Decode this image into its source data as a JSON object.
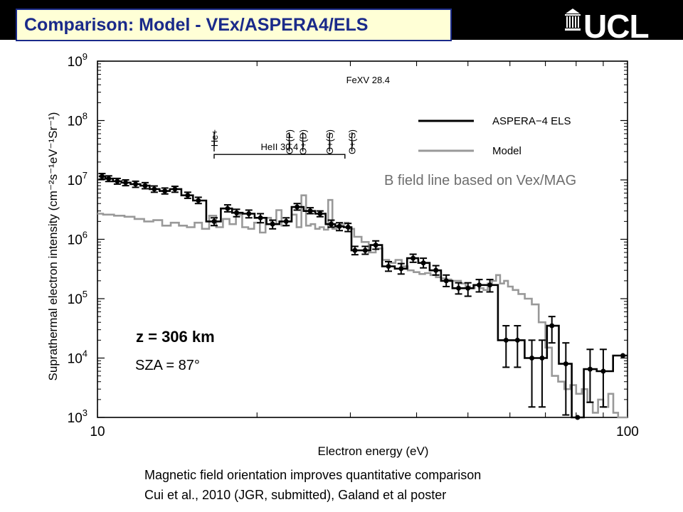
{
  "header": {
    "title": "Comparison: Model - VEx/ASPERA4/ELS",
    "logo_text": "UCL"
  },
  "annotations": {
    "b_field": "B field line based on Vex/MAG",
    "sza": "SZA = 87°"
  },
  "caption": {
    "line1": "Magnetic field orientation improves quantitative comparison",
    "line2": "Cui et al., 2010 (JGR, submitted), Galand et al poster"
  },
  "colors": {
    "title_text": "#1a2a8a",
    "title_bg": "#ffffd6",
    "topbar": "#000000",
    "observed": "#000000",
    "model": "#999999"
  },
  "chart_data": {
    "type": "line",
    "xlabel": "Electron energy (eV)",
    "ylabel": "Suprathermal electron intensity (cm⁻²s⁻¹eV⁻¹Sr⁻¹)",
    "xscale": "log",
    "yscale": "log",
    "xlim": [
      10,
      100
    ],
    "ylim": [
      1000,
      1000000000
    ],
    "x_ticks": [
      {
        "value": 10,
        "label": "10"
      },
      {
        "value": 100,
        "label": "100"
      }
    ],
    "y_ticks": [
      {
        "value": 1000,
        "base": "10",
        "exp": "3"
      },
      {
        "value": 10000,
        "base": "10",
        "exp": "4"
      },
      {
        "value": 100000,
        "base": "10",
        "exp": "5"
      },
      {
        "value": 1000000,
        "base": "10",
        "exp": "6"
      },
      {
        "value": 10000000,
        "base": "10",
        "exp": "7"
      },
      {
        "value": 100000000,
        "base": "10",
        "exp": "8"
      },
      {
        "value": 1000000000,
        "base": "10",
        "exp": "9"
      }
    ],
    "legend": {
      "placement": "top-right",
      "entries": [
        {
          "name": "ASPERA−4 ELS",
          "series": "observed"
        },
        {
          "name": "Model",
          "series": "model"
        }
      ]
    },
    "plot_label": "z = 306 km",
    "line_marks": {
      "group_label": "HeII 30.4",
      "group_from": 16.6,
      "group_to": 29.3,
      "group_y": 30000000,
      "lines": [
        {
          "label": "He+",
          "x": 16.6
        },
        {
          "label": "O+(P)",
          "x": 23.0
        },
        {
          "label": "O+(D)",
          "x": 24.4
        },
        {
          "label": "O+(S)",
          "x": 27.4
        },
        {
          "label": "O+(S)",
          "x": 30.2,
          "sublabel": "FeXV 28.4"
        }
      ]
    },
    "series": [
      {
        "name": "ASPERA−4 ELS",
        "id": "observed",
        "x": [
          10.2,
          10.5,
          10.9,
          11.3,
          11.8,
          12.3,
          12.8,
          13.4,
          14.0,
          14.8,
          15.5,
          16.6,
          17.6,
          18.3,
          19.3,
          20.3,
          21.4,
          22.7,
          23.8,
          25.2,
          26.3,
          27.6,
          28.6,
          29.7,
          30.6,
          32.0,
          33.5,
          35.4,
          37.4,
          39.4,
          41.2,
          43.5,
          45.5,
          48.0,
          50.0,
          52.5,
          55.0,
          59.0,
          62.0,
          66.0,
          69.0,
          72.0,
          76.5,
          80.5,
          85.0,
          90.0,
          98.0
        ],
        "y": [
          11500000,
          10500000,
          9500000,
          9000000,
          8500000,
          8000000,
          7000000,
          6500000,
          7000000,
          5500000,
          4500000,
          2000000,
          3300000,
          2800000,
          2700000,
          2300000,
          1800000,
          2000000,
          3500000,
          3000000,
          2700000,
          1800000,
          1650000,
          1600000,
          650000,
          650000,
          800000,
          350000,
          320000,
          480000,
          400000,
          300000,
          200000,
          150000,
          150000,
          170000,
          170000,
          20000,
          20000,
          10000,
          10000,
          35000,
          8000,
          1000,
          6500,
          6000,
          11000
        ],
        "err_lo": [
          10300000,
          9400000,
          8500000,
          8000000,
          7500000,
          7100000,
          6200000,
          5800000,
          6200000,
          4900000,
          4000000,
          1700000,
          2900000,
          2400000,
          2300000,
          1900000,
          1500000,
          1700000,
          3100000,
          2700000,
          2400000,
          1600000,
          1400000,
          1350000,
          550000,
          560000,
          680000,
          290000,
          260000,
          410000,
          330000,
          250000,
          160000,
          120000,
          110000,
          130000,
          130000,
          7000,
          7000,
          1500,
          1500,
          18000,
          1100,
          1000,
          1800,
          1500,
          11000
        ],
        "err_hi": [
          12800000,
          11700000,
          10600000,
          10000000,
          9500000,
          9000000,
          7900000,
          7300000,
          7800000,
          6200000,
          5100000,
          2300000,
          3800000,
          3200000,
          3100000,
          2700000,
          2100000,
          2300000,
          4000000,
          3400000,
          3000000,
          2100000,
          1900000,
          1850000,
          760000,
          760000,
          940000,
          420000,
          390000,
          560000,
          480000,
          360000,
          250000,
          185000,
          185000,
          210000,
          210000,
          35000,
          35000,
          20000,
          20000,
          50000,
          18000,
          1000,
          14000,
          14000,
          11000
        ]
      },
      {
        "name": "Model",
        "id": "model",
        "x": [
          10.0,
          10.5,
          11.0,
          11.5,
          12.0,
          12.5,
          13.0,
          13.5,
          14.0,
          14.5,
          15.0,
          15.5,
          16.0,
          16.5,
          17.0,
          17.5,
          18.0,
          18.5,
          19.0,
          19.5,
          20.0,
          20.5,
          21.0,
          21.5,
          22.0,
          22.5,
          23.0,
          23.5,
          24.0,
          24.5,
          25.0,
          25.5,
          26.0,
          26.5,
          27.0,
          27.5,
          28.0,
          28.5,
          29.0,
          29.5,
          30.0,
          31.0,
          32.0,
          33.0,
          34.0,
          35.0,
          36.0,
          37.0,
          38.0,
          39.0,
          40.0,
          41.0,
          42.0,
          43.0,
          44.0,
          45.0,
          46.0,
          47.0,
          48.0,
          49.0,
          50.0,
          51.0,
          52.0,
          53.0,
          54.0,
          55.0,
          56.0,
          57.0,
          58.0,
          59.0,
          60.0,
          61.5,
          63.0,
          65.0,
          67.0,
          69.0,
          71.0,
          73.0,
          75.0,
          77.0,
          79.0,
          81.0,
          83.0,
          85.0,
          87.0,
          89.0,
          91.0,
          93.0,
          95.0,
          97.0,
          100.0
        ],
        "y": [
          2700000,
          2600000,
          2500000,
          2400000,
          2200000,
          2000000,
          2100000,
          1700000,
          1900000,
          1700000,
          1600000,
          1900000,
          1500000,
          2500000,
          1600000,
          2200000,
          1800000,
          2600000,
          1600000,
          1500000,
          1900000,
          1300000,
          2300000,
          1800000,
          3100000,
          1700000,
          2000000,
          2600000,
          1600000,
          5500000,
          1700000,
          1800000,
          1500000,
          1600000,
          1450000,
          4600000,
          1500000,
          1700000,
          1800000,
          1900000,
          1500000,
          1100000,
          900000,
          600000,
          700000,
          450000,
          400000,
          450000,
          350000,
          300000,
          280000,
          260000,
          270000,
          250000,
          230000,
          220000,
          210000,
          200000,
          200000,
          180000,
          160000,
          150000,
          170000,
          150000,
          140000,
          180000,
          200000,
          250000,
          180000,
          200000,
          160000,
          140000,
          120000,
          100000,
          80000,
          40000,
          15000,
          5000,
          4000,
          3000,
          3500,
          2500,
          3000,
          1800,
          1200,
          2000,
          1500,
          2500,
          1200,
          1000,
          1000
        ]
      }
    ]
  }
}
